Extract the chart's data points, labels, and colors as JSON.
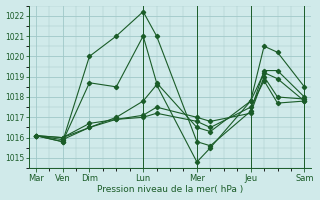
{
  "background_color": "#d0eaea",
  "grid_color": "#a0c8c8",
  "line_color": "#1a5c28",
  "title": "Pression niveau de la mer( hPa )",
  "yticks": [
    1015,
    1016,
    1017,
    1018,
    1019,
    1020,
    1021,
    1022
  ],
  "ylim": [
    1014.5,
    1022.5
  ],
  "xlim": [
    -0.5,
    20.5
  ],
  "xtick_labels_pos": [
    0,
    2,
    4,
    8,
    12,
    16,
    20
  ],
  "xtick_labels": [
    "Mar",
    "Ven",
    "Dim",
    "Lun",
    "Mer",
    "Jeu",
    "Sam"
  ],
  "vlines": [
    8,
    12,
    16,
    20
  ],
  "series": [
    {
      "x": [
        0,
        2,
        4,
        6,
        8,
        9,
        12,
        13,
        16,
        17,
        18,
        20
      ],
      "y": [
        1016.1,
        1015.8,
        1020.0,
        1021.0,
        1022.2,
        1021.0,
        1015.8,
        1015.6,
        1017.3,
        1019.3,
        1019.3,
        1018.0
      ]
    },
    {
      "x": [
        0,
        2,
        4,
        6,
        8,
        9,
        12,
        13,
        16,
        17,
        18,
        20
      ],
      "y": [
        1016.1,
        1015.8,
        1018.7,
        1018.5,
        1021.0,
        1018.7,
        1016.5,
        1016.3,
        1017.8,
        1020.5,
        1020.2,
        1018.5
      ]
    },
    {
      "x": [
        0,
        2,
        4,
        6,
        8,
        9,
        12,
        13,
        16,
        17,
        18,
        20
      ],
      "y": [
        1016.1,
        1016.0,
        1016.7,
        1016.9,
        1017.0,
        1017.2,
        1016.8,
        1016.5,
        1017.5,
        1018.8,
        1017.7,
        1017.8
      ]
    },
    {
      "x": [
        0,
        2,
        4,
        6,
        8,
        9,
        12,
        13,
        16,
        17,
        18,
        20
      ],
      "y": [
        1016.1,
        1016.0,
        1016.5,
        1016.9,
        1017.1,
        1017.5,
        1017.0,
        1016.8,
        1017.2,
        1019.0,
        1018.0,
        1017.9
      ]
    },
    {
      "x": [
        0,
        2,
        4,
        6,
        8,
        9,
        12,
        13,
        16,
        17,
        18,
        20
      ],
      "y": [
        1016.1,
        1015.9,
        1016.5,
        1017.0,
        1017.8,
        1018.6,
        1014.8,
        1015.5,
        1017.8,
        1019.2,
        1018.9,
        1017.8
      ]
    }
  ]
}
